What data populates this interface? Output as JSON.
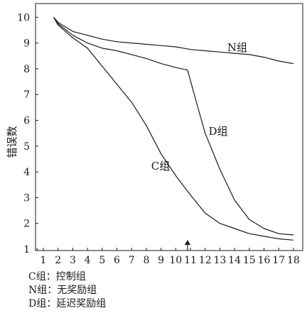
{
  "chart_data": {
    "type": "line",
    "ylabel": "错误数",
    "xlabel": "",
    "xlim": [
      1,
      18
    ],
    "ylim": [
      1,
      10
    ],
    "x_ticks": [
      1,
      2,
      3,
      4,
      5,
      6,
      7,
      8,
      9,
      10,
      11,
      12,
      13,
      14,
      15,
      16,
      17,
      18
    ],
    "y_ticks": [
      1,
      2,
      3,
      4,
      5,
      6,
      7,
      8,
      9,
      10
    ],
    "grid": false,
    "series": [
      {
        "name": "N组",
        "x": [
          1.7,
          2,
          3,
          4,
          5,
          6,
          7,
          8,
          9,
          10,
          11,
          12,
          13,
          14,
          15,
          16,
          17,
          18
        ],
        "y": [
          10,
          9.8,
          9.45,
          9.3,
          9.15,
          9.05,
          9.0,
          8.95,
          8.9,
          8.85,
          8.75,
          8.7,
          8.65,
          8.6,
          8.55,
          8.45,
          8.3,
          8.2
        ]
      },
      {
        "name": "D组",
        "x": [
          1.7,
          2,
          3,
          4,
          5,
          6,
          7,
          8,
          9,
          10,
          10.8,
          11.5,
          12,
          13,
          14,
          15,
          16,
          17,
          18
        ],
        "y": [
          10,
          9.75,
          9.3,
          9.0,
          8.8,
          8.7,
          8.55,
          8.4,
          8.2,
          8.05,
          7.95,
          6.5,
          5.5,
          4.1,
          2.9,
          2.15,
          1.8,
          1.6,
          1.55
        ]
      },
      {
        "name": "C组",
        "x": [
          1.7,
          2,
          3,
          4,
          5,
          6,
          7,
          8,
          9,
          10,
          11,
          12,
          13,
          14,
          15,
          16,
          17,
          18
        ],
        "y": [
          10,
          9.7,
          9.2,
          8.8,
          8.1,
          7.4,
          6.7,
          5.8,
          4.7,
          3.85,
          3.1,
          2.4,
          2.0,
          1.8,
          1.6,
          1.5,
          1.4,
          1.35
        ]
      }
    ],
    "series_labels": [
      "N组",
      "D组",
      "C组"
    ],
    "arrow_at_x": 10.8,
    "color": "#1a1a1a"
  },
  "legend_notes": [
    "C组：控制组",
    "N组：无奖励组",
    "D组：延迟奖励组"
  ]
}
